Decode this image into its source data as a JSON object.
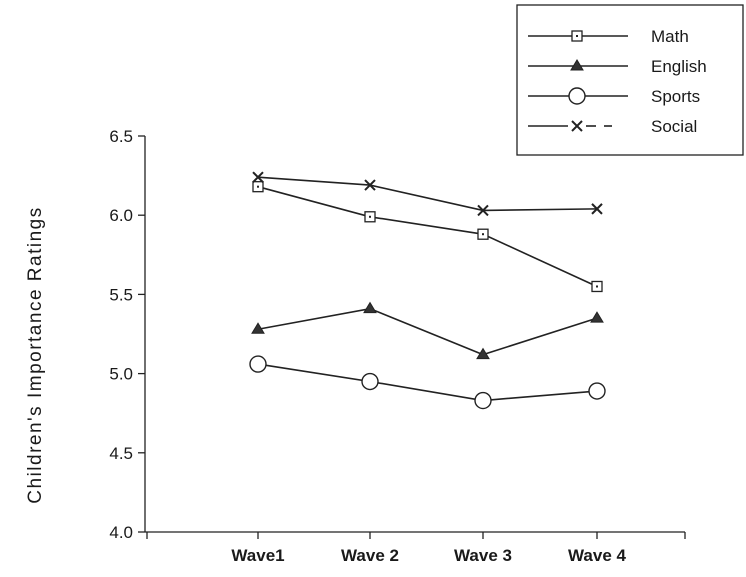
{
  "chart_data": {
    "type": "line",
    "ylabel": "Children's  Importance  Ratings",
    "xlabel": "",
    "categories": [
      "Wave1",
      "Wave 2",
      "Wave 3",
      "Wave 4"
    ],
    "ylim": [
      4.0,
      6.5
    ],
    "yticks": [
      "4.0",
      "4.5",
      "5.0",
      "5.5",
      "6.0",
      "6.5"
    ],
    "ytick_values": [
      4.0,
      4.5,
      5.0,
      5.5,
      6.0,
      6.5
    ],
    "grid": false,
    "legend_position": "top-right",
    "series": [
      {
        "name": "Math",
        "marker": "square",
        "values": [
          6.18,
          5.99,
          5.88,
          5.55
        ]
      },
      {
        "name": "English",
        "marker": "triangle",
        "values": [
          5.28,
          5.41,
          5.12,
          5.35
        ]
      },
      {
        "name": "Sports",
        "marker": "circle",
        "values": [
          5.06,
          4.95,
          4.83,
          4.89
        ]
      },
      {
        "name": "Social",
        "marker": "x",
        "values": [
          6.24,
          6.19,
          6.03,
          6.04
        ]
      }
    ]
  }
}
